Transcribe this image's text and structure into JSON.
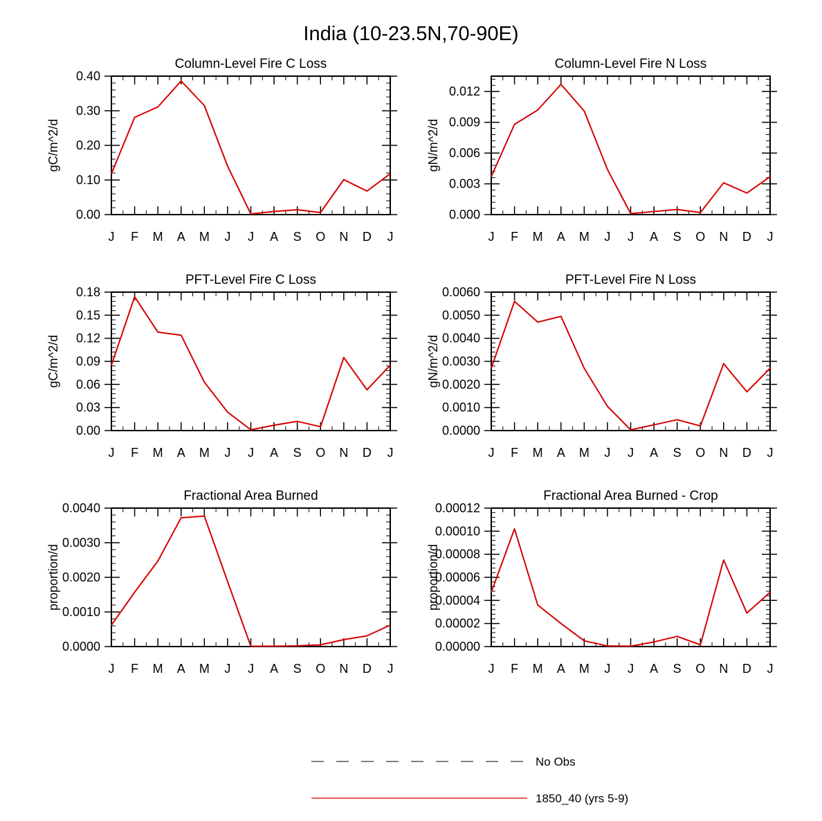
{
  "figure": {
    "title": "India (10-23.5N,70-90E)"
  },
  "legend": [
    {
      "name": "No Obs",
      "style": "dashed",
      "color": "#555555"
    },
    {
      "name": "1850_40 (yrs 5-9)",
      "style": "solid",
      "color": "#d40000"
    }
  ],
  "chart_data": [
    {
      "type": "line",
      "title": "Column-Level Fire C Loss",
      "ylabel": "gC/m^2/d",
      "categories": [
        "J",
        "F",
        "M",
        "A",
        "M",
        "J",
        "J",
        "A",
        "S",
        "O",
        "N",
        "D",
        "J"
      ],
      "ylim": [
        0,
        0.4
      ],
      "yticks": [
        "0.00",
        "0.10",
        "0.20",
        "0.30",
        "0.40"
      ],
      "grid": false,
      "series": [
        {
          "name": "1850_40 (yrs 5-9)",
          "color": "#d40000",
          "values": [
            0.118,
            0.281,
            0.311,
            0.386,
            0.315,
            0.14,
            0.002,
            0.009,
            0.014,
            0.006,
            0.101,
            0.068,
            0.118
          ]
        }
      ]
    },
    {
      "type": "line",
      "title": "Column-Level Fire N Loss",
      "ylabel": "gN/m^2/d",
      "categories": [
        "J",
        "F",
        "M",
        "A",
        "M",
        "J",
        "J",
        "A",
        "S",
        "O",
        "N",
        "D",
        "J"
      ],
      "ylim": [
        0,
        0.0135
      ],
      "yticks": [
        "0.000",
        "0.003",
        "0.006",
        "0.009",
        "0.012"
      ],
      "grid": false,
      "series": [
        {
          "name": "1850_40 (yrs 5-9)",
          "color": "#d40000",
          "values": [
            0.0037,
            0.0088,
            0.0102,
            0.0127,
            0.0101,
            0.0044,
            0.0001,
            0.0003,
            0.0005,
            0.0002,
            0.0031,
            0.0021,
            0.0037
          ]
        }
      ]
    },
    {
      "type": "line",
      "title": "PFT-Level Fire C Loss",
      "ylabel": "gC/m^2/d",
      "categories": [
        "J",
        "F",
        "M",
        "A",
        "M",
        "J",
        "J",
        "A",
        "S",
        "O",
        "N",
        "D",
        "J"
      ],
      "ylim": [
        0,
        0.18
      ],
      "yticks": [
        "0.00",
        "0.03",
        "0.06",
        "0.09",
        "0.12",
        "0.15",
        "0.18"
      ],
      "grid": false,
      "series": [
        {
          "name": "1850_40 (yrs 5-9)",
          "color": "#d40000",
          "values": [
            0.085,
            0.174,
            0.128,
            0.124,
            0.063,
            0.024,
            0.001,
            0.007,
            0.012,
            0.005,
            0.095,
            0.053,
            0.085
          ]
        }
      ]
    },
    {
      "type": "line",
      "title": "PFT-Level Fire N Loss",
      "ylabel": "gN/m^2/d",
      "categories": [
        "J",
        "F",
        "M",
        "A",
        "M",
        "J",
        "J",
        "A",
        "S",
        "O",
        "N",
        "D",
        "J"
      ],
      "ylim": [
        0,
        0.006
      ],
      "yticks": [
        "0.0000",
        "0.0010",
        "0.0020",
        "0.0030",
        "0.0040",
        "0.0050",
        "0.0060"
      ],
      "grid": false,
      "series": [
        {
          "name": "1850_40 (yrs 5-9)",
          "color": "#d40000",
          "values": [
            0.0027,
            0.0056,
            0.0047,
            0.00495,
            0.0027,
            0.00105,
            3e-05,
            0.00025,
            0.00047,
            0.0002,
            0.0029,
            0.00168,
            0.0027
          ]
        }
      ]
    },
    {
      "type": "line",
      "title": "Fractional Area Burned",
      "ylabel": "proportion/d",
      "categories": [
        "J",
        "F",
        "M",
        "A",
        "M",
        "J",
        "J",
        "A",
        "S",
        "O",
        "N",
        "D",
        "J"
      ],
      "ylim": [
        0,
        0.004
      ],
      "yticks": [
        "0.0000",
        "0.0010",
        "0.0020",
        "0.0030",
        "0.0040"
      ],
      "grid": false,
      "series": [
        {
          "name": "1850_40 (yrs 5-9)",
          "color": "#d40000",
          "values": [
            0.00062,
            0.00157,
            0.00247,
            0.00372,
            0.00377,
            0.00188,
            1e-05,
            1e-05,
            2e-05,
            5e-05,
            0.0002,
            0.00031,
            0.00062
          ]
        }
      ]
    },
    {
      "type": "line",
      "title": "Fractional Area Burned - Crop",
      "ylabel": "proportion/d",
      "categories": [
        "J",
        "F",
        "M",
        "A",
        "M",
        "J",
        "J",
        "A",
        "S",
        "O",
        "N",
        "D",
        "J"
      ],
      "ylim": [
        0,
        0.00012
      ],
      "yticks": [
        "0.00000",
        "0.00002",
        "0.00004",
        "0.00006",
        "0.00008",
        "0.00010",
        "0.00012"
      ],
      "grid": false,
      "series": [
        {
          "name": "1850_40 (yrs 5-9)",
          "color": "#d40000",
          "values": [
            4.7e-05,
            0.000102,
            3.6e-05,
            2e-05,
            5e-06,
            5e-07,
            3e-07,
            4e-06,
            8.8e-06,
            1.5e-06,
            7.5e-05,
            2.9e-05,
            4.7e-05
          ]
        }
      ]
    }
  ]
}
